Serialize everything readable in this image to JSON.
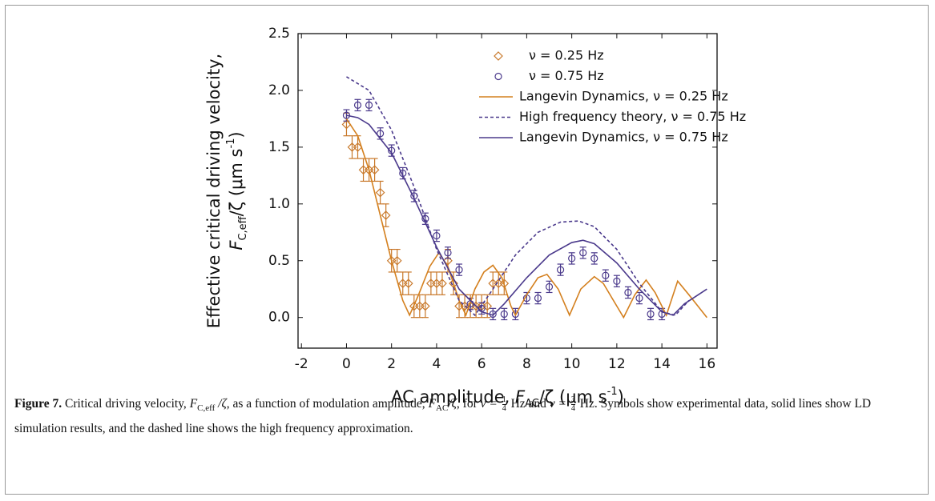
{
  "chart_data": {
    "type": "scatter",
    "xlabel": [
      {
        "text": "AC amplitude, ",
        "pos": "normal"
      },
      {
        "text": "F",
        "pos": "italic"
      },
      {
        "text": "AC",
        "pos": "sub"
      },
      {
        "text": "/ζ (μm s",
        "pos": "normal"
      },
      {
        "text": "-1",
        "pos": "sup"
      },
      {
        "text": ")",
        "pos": "normal"
      }
    ],
    "ylabel": [
      "Effective critical driving velocity,",
      [
        {
          "text": "F",
          "pos": "italic"
        },
        {
          "text": "C,eff",
          "pos": "sub"
        },
        {
          "text": "/ζ (μm s",
          "pos": "normal"
        },
        {
          "text": "-1",
          "pos": "sup"
        },
        {
          "text": ")",
          "pos": "normal"
        }
      ]
    ],
    "xlim": [
      -2.15,
      16.45
    ],
    "ylim": [
      -0.27,
      2.5
    ],
    "xticks": [
      -2,
      0,
      2,
      4,
      6,
      8,
      10,
      12,
      14,
      16
    ],
    "yticks": [
      {
        "value": 0,
        "label": "0.0"
      },
      0.5,
      {
        "value": 1,
        "label": "1.0"
      },
      1.5,
      {
        "value": 2,
        "label": "2.0"
      },
      2.5
    ],
    "series": [
      {
        "name": "ν = 0.25 Hz",
        "color": "#c8782a",
        "style": "diamond",
        "x": [
          0,
          0.25,
          0.5,
          0.75,
          1,
          1.25,
          1.5,
          1.75,
          2,
          2.25,
          2.5,
          2.75,
          3,
          3.25,
          3.5,
          3.75,
          4,
          4.25,
          4.5,
          4.75,
          5,
          5.25,
          5.5,
          5.75,
          6,
          6.25,
          6.5,
          6.75,
          7
        ],
        "values": [
          1.7,
          1.5,
          1.5,
          1.3,
          1.3,
          1.3,
          1.1,
          0.9,
          0.5,
          0.5,
          0.3,
          0.3,
          0.1,
          0.1,
          0.1,
          0.3,
          0.3,
          0.3,
          0.5,
          0.3,
          0.1,
          0.1,
          0.1,
          0.1,
          0.1,
          0.1,
          0.3,
          0.3,
          0.3
        ],
        "errors": [
          0.1,
          0.1,
          0.1,
          0.1,
          0.1,
          0.1,
          0.1,
          0.1,
          0.1,
          0.1,
          0.1,
          0.1,
          0.1,
          0.1,
          0.1,
          0.1,
          0.1,
          0.1,
          0.1,
          0.1,
          0.1,
          0.1,
          0.1,
          0.1,
          0.1,
          0.1,
          0.1,
          0.1,
          0.1
        ]
      },
      {
        "name": "ν = 0.75 Hz",
        "color": "#4b3a8c",
        "style": "circle",
        "x": [
          0,
          0.5,
          1,
          1.5,
          2,
          2.5,
          3,
          3.5,
          4,
          4.5,
          5,
          5.5,
          6,
          6.5,
          7,
          7.5,
          8,
          8.5,
          9,
          9.5,
          10,
          10.5,
          11,
          11.5,
          12,
          12.5,
          13,
          13.5,
          14
        ],
        "values": [
          1.78,
          1.87,
          1.87,
          1.62,
          1.47,
          1.27,
          1.07,
          0.87,
          0.72,
          0.57,
          0.42,
          0.12,
          0.08,
          0.03,
          0.03,
          0.03,
          0.17,
          0.17,
          0.27,
          0.42,
          0.52,
          0.57,
          0.52,
          0.37,
          0.32,
          0.22,
          0.17,
          0.03,
          0.03
        ],
        "errors": [
          0.05,
          0.05,
          0.05,
          0.05,
          0.05,
          0.05,
          0.05,
          0.05,
          0.05,
          0.05,
          0.05,
          0.05,
          0.05,
          0.05,
          0.05,
          0.05,
          0.05,
          0.05,
          0.05,
          0.05,
          0.05,
          0.05,
          0.05,
          0.05,
          0.05,
          0.05,
          0.05,
          0.05,
          0.05
        ]
      },
      {
        "name": "Langevin Dynamics,  ν = 0.25 Hz",
        "color": "#d4801f",
        "style": "line",
        "x": [
          0,
          0.5,
          1,
          1.5,
          2,
          2.5,
          2.8,
          3.2,
          3.7,
          4.1,
          4.5,
          5,
          5.3,
          5.7,
          6.1,
          6.5,
          6.9,
          7.3,
          7.5,
          8,
          8.5,
          8.9,
          9.4,
          9.9,
          10.4,
          11,
          11.4,
          12,
          12.3,
          12.8,
          13.3,
          13.7,
          14.2,
          14.7,
          15.2,
          16
        ],
        "values": [
          1.75,
          1.6,
          1.3,
          0.9,
          0.5,
          0.15,
          0.02,
          0.2,
          0.45,
          0.57,
          0.45,
          0.15,
          0.02,
          0.25,
          0.4,
          0.46,
          0.35,
          0.1,
          0.02,
          0.2,
          0.35,
          0.38,
          0.25,
          0.02,
          0.25,
          0.36,
          0.3,
          0.1,
          0.0,
          0.2,
          0.33,
          0.22,
          0.02,
          0.32,
          0.2,
          0.0
        ]
      },
      {
        "name": "High frequency theory,  ν = 0.75 Hz",
        "color": "#4b3a8c",
        "style": "dashed",
        "x": [
          0,
          1,
          2,
          3,
          4,
          5,
          5.7,
          6.5,
          7.5,
          8.5,
          9.5,
          10.3,
          11,
          12,
          13,
          14,
          14.6,
          15.2
        ],
        "values": [
          2.12,
          2.0,
          1.65,
          1.15,
          0.6,
          0.15,
          0.02,
          0.25,
          0.55,
          0.75,
          0.84,
          0.85,
          0.8,
          0.6,
          0.3,
          0.05,
          0.02,
          0.15
        ]
      },
      {
        "name": "Langevin Dynamics,  ν = 0.75 Hz",
        "color": "#4b3a8c",
        "style": "line",
        "x": [
          0,
          0.5,
          1,
          2,
          3,
          4,
          5,
          6,
          6.5,
          7,
          8,
          9,
          10,
          10.5,
          11,
          12,
          13,
          14,
          14.5,
          15,
          16
        ],
        "values": [
          1.78,
          1.76,
          1.7,
          1.45,
          1.05,
          0.62,
          0.25,
          0.05,
          0.02,
          0.12,
          0.35,
          0.55,
          0.66,
          0.68,
          0.65,
          0.48,
          0.25,
          0.05,
          0.02,
          0.12,
          0.25
        ]
      }
    ]
  },
  "caption": [
    {
      "text": "Figure 7.",
      "pos": "bold"
    },
    {
      "text": " Critical driving velocity, ",
      "pos": "normal"
    },
    {
      "text": "F",
      "pos": "italic"
    },
    {
      "text": "C,eff",
      "pos": "sub"
    },
    {
      "text": " /ζ",
      "pos": "italic"
    },
    {
      "text": ", as a function of modulation amplitude, ",
      "pos": "normal"
    },
    {
      "text": "F",
      "pos": "italic"
    },
    {
      "text": "AC",
      "pos": "sub"
    },
    {
      "text": "/ζ",
      "pos": "italic"
    },
    {
      "text": ", for ",
      "pos": "normal"
    },
    {
      "text": "ν = ",
      "pos": "italic"
    },
    {
      "num": "1",
      "den": "4"
    },
    {
      "text": " Hz and ",
      "pos": "normal"
    },
    {
      "text": "ν = ",
      "pos": "italic"
    },
    {
      "num": "3",
      "den": "4"
    },
    {
      "text": " Hz. Symbols show experimental data, solid lines show LD simulation results, and the dashed line shows the high frequency approximation.",
      "pos": "normal"
    }
  ]
}
